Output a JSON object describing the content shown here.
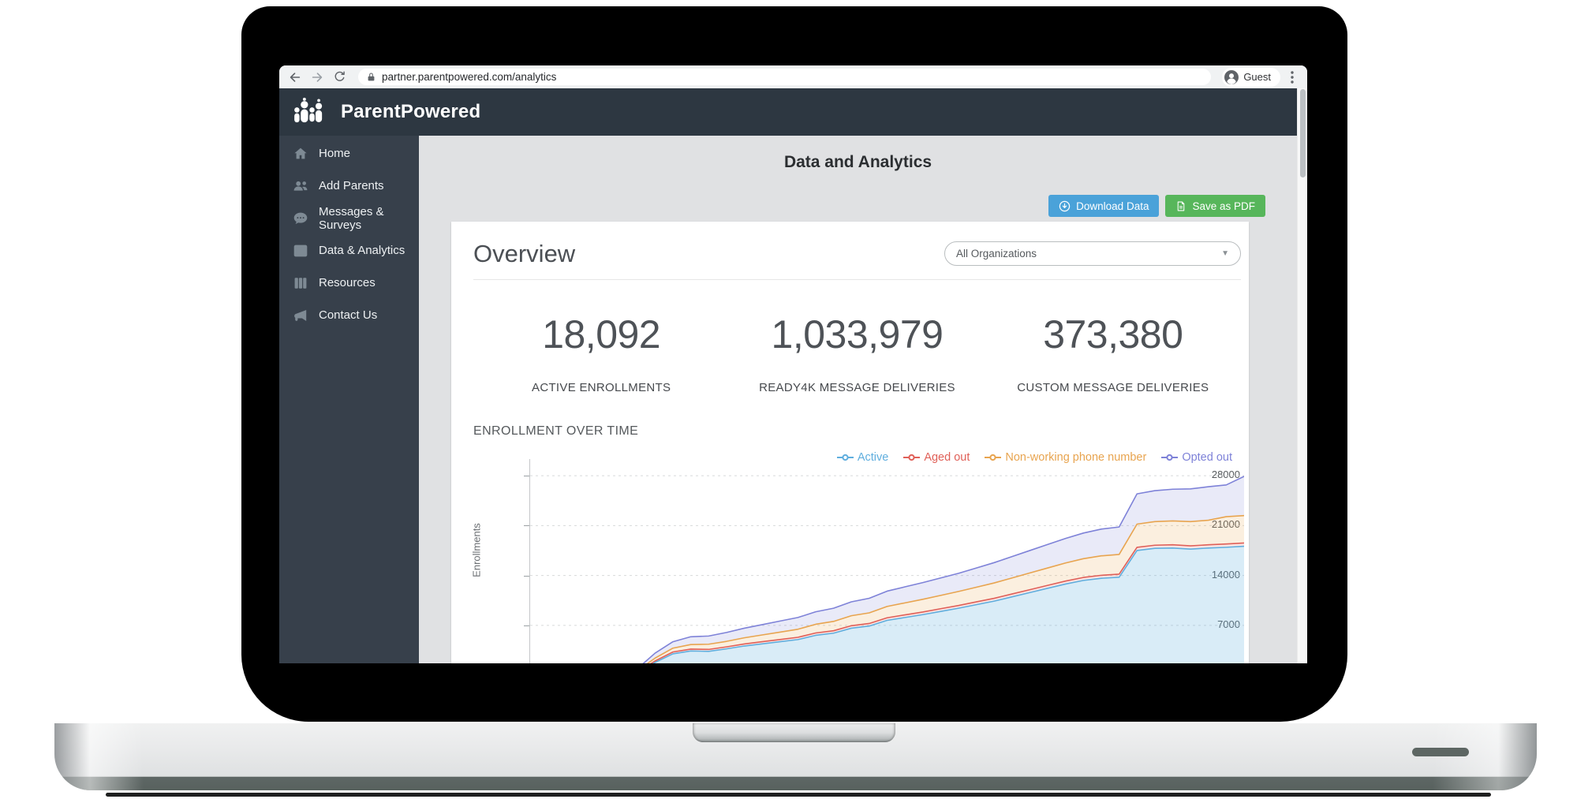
{
  "browser": {
    "url": "partner.parentpowered.com/analytics",
    "profile_label": "Guest"
  },
  "brand": {
    "name": "ParentPowered"
  },
  "sidebar": {
    "items": [
      {
        "label": "Home",
        "icon": "home-icon"
      },
      {
        "label": "Add Parents",
        "icon": "users-icon"
      },
      {
        "label": "Messages & Surveys",
        "icon": "comment-icon"
      },
      {
        "label": "Data & Analytics",
        "icon": "chart-line-icon"
      },
      {
        "label": "Resources",
        "icon": "columns-icon"
      },
      {
        "label": "Contact Us",
        "icon": "megaphone-icon"
      }
    ]
  },
  "main": {
    "page_title": "Data and Analytics",
    "actions": {
      "download": "Download Data",
      "save_pdf": "Save as PDF"
    },
    "overview": {
      "title": "Overview",
      "org_filter": "All Organizations",
      "stats": [
        {
          "value": "18,092",
          "label": "ACTIVE ENROLLMENTS"
        },
        {
          "value": "1,033,979",
          "label": "READY4K MESSAGE DELIVERIES"
        },
        {
          "value": "373,380",
          "label": "CUSTOM MESSAGE DELIVERIES"
        }
      ],
      "section_title": "ENROLLMENT OVER TIME"
    }
  },
  "colors": {
    "header_bg": "#2D3741",
    "sidebar_bg": "#37404B",
    "content_bg": "#E0E1E3",
    "accent_blue": "#4AA2D9",
    "accent_green": "#57B65B"
  },
  "chart_data": {
    "type": "area",
    "stacked": true,
    "title": "ENROLLMENT OVER TIME",
    "xlabel": "",
    "ylabel": "Enrollments",
    "yticks": [
      7000,
      14000,
      21000,
      28000
    ],
    "ylim": [
      0,
      28000
    ],
    "grid": "dashed-horizontal",
    "legend_position": "top-right",
    "x_note": "time axis labels clipped below browser viewport",
    "series": [
      {
        "name": "Active",
        "color": "#5FAEDE",
        "fill": "rgba(95,174,222,0.24)",
        "cumulative_values": [
          0,
          0,
          0,
          0,
          0,
          0,
          300,
          1800,
          3000,
          3400,
          3350,
          3700,
          4100,
          4400,
          4700,
          5000,
          5600,
          5900,
          6600,
          6900,
          7700,
          8100,
          8500,
          8950,
          9400,
          9900,
          10400,
          11000,
          11600,
          12200,
          12800,
          13300,
          13600,
          13750,
          17500,
          17800,
          17850,
          17700,
          17850,
          17950,
          18092
        ]
      },
      {
        "name": "Aged out",
        "color": "#E06058",
        "fill": "rgba(224,96,88,0.16)",
        "cumulative_values": [
          0,
          0,
          0,
          0,
          0,
          0,
          380,
          2000,
          3260,
          3670,
          3620,
          3980,
          4390,
          4700,
          5010,
          5320,
          5930,
          6240,
          6950,
          7260,
          8060,
          8470,
          8870,
          9330,
          9780,
          10290,
          10790,
          11400,
          12000,
          12610,
          13210,
          13720,
          14020,
          14180,
          17940,
          18240,
          18300,
          18150,
          18300,
          18410,
          18550
        ]
      },
      {
        "name": "Non-working phone number",
        "color": "#E8A44F",
        "fill": "rgba(233,166,79,0.18)",
        "cumulative_values": [
          0,
          0,
          0,
          0,
          0,
          0,
          600,
          2400,
          3800,
          4300,
          4350,
          4750,
          5250,
          5650,
          6050,
          6450,
          7150,
          7550,
          8350,
          8750,
          9650,
          10150,
          10650,
          11200,
          11750,
          12350,
          12950,
          13650,
          14350,
          15050,
          15750,
          16350,
          16750,
          16950,
          21200,
          21550,
          21650,
          21550,
          21750,
          22250,
          22400
        ]
      },
      {
        "name": "Opted out",
        "color": "#7E82D8",
        "fill": "rgba(126,130,216,0.17)",
        "cumulative_values": [
          0,
          0,
          0,
          0,
          0,
          0,
          900,
          3100,
          4700,
          5400,
          5500,
          6000,
          6600,
          7100,
          7600,
          8100,
          8900,
          9400,
          10300,
          10800,
          11800,
          12400,
          13000,
          13650,
          14300,
          15050,
          15800,
          16650,
          17500,
          18350,
          19200,
          19950,
          20500,
          20800,
          25450,
          25900,
          26100,
          26150,
          26450,
          26700,
          27900
        ]
      }
    ]
  }
}
